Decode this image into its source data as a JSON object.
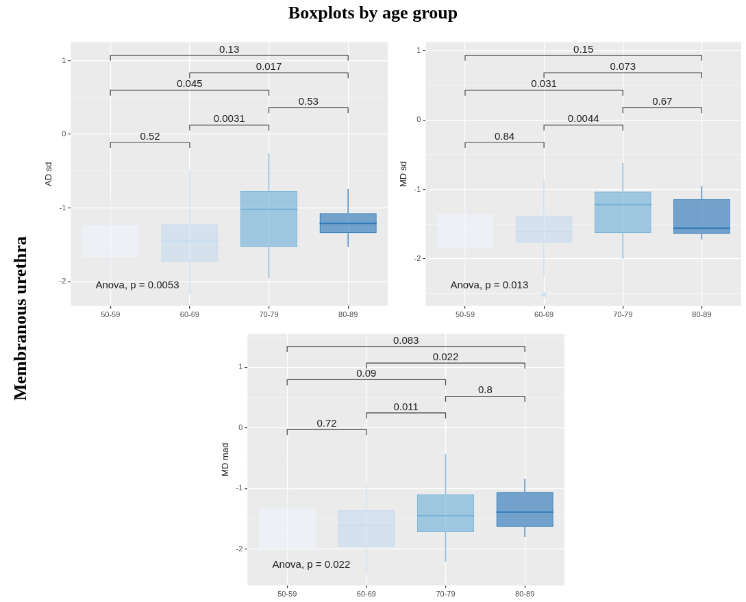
{
  "chart_data": [
    {
      "type": "box",
      "title": "Boxplots by age group",
      "subtitle": "Membranous urethra",
      "ylabel": "AD sd",
      "categories": [
        "50-59",
        "60-69",
        "70-79",
        "80-89"
      ],
      "boxes": [
        {
          "low": -2.0,
          "q1": -1.67,
          "median": -1.38,
          "q3": -1.23,
          "high": -0.86,
          "outliers": [
            -0.19
          ]
        },
        {
          "low": -2.17,
          "q1": -1.73,
          "median": -1.45,
          "q3": -1.22,
          "high": -0.48
        },
        {
          "low": -1.95,
          "q1": -1.53,
          "median": -1.02,
          "q3": -0.77,
          "high": -0.26
        },
        {
          "low": -1.53,
          "q1": -1.34,
          "median": -1.21,
          "q3": -1.07,
          "high": -0.74
        }
      ],
      "colors": [
        "#eef3fb",
        "#c6dbef",
        "#6baed6",
        "#2171b5"
      ],
      "ylim": [
        -2.33,
        1.25
      ],
      "yticks": [
        -2,
        {
          "value": -1.5,
          "label": null
        },
        -1,
        {
          "value": -0.5,
          "label": null
        },
        0,
        {
          "value": 0.5,
          "label": null
        },
        1
      ],
      "grid": true,
      "annotations": [
        "0.52",
        "0.0031",
        "0.53",
        "0.045",
        "0.017",
        "0.13",
        "Anova, p = 0.0053"
      ]
    },
    {
      "type": "box",
      "ylabel": "MD sd",
      "categories": [
        "50-59",
        "60-69",
        "70-79",
        "80-89"
      ],
      "boxes": [
        {
          "low": -2.1,
          "q1": -1.84,
          "median": -1.73,
          "q3": -1.36,
          "high": -1.17,
          "outliers": [
            -0.41
          ]
        },
        {
          "low": -2.26,
          "q1": -1.77,
          "median": -1.61,
          "q3": -1.38,
          "high": -0.85,
          "outliers": [
            -2.52
          ]
        },
        {
          "low": -2.0,
          "q1": -1.63,
          "median": -1.22,
          "q3": -1.03,
          "high": -0.62
        },
        {
          "low": -1.72,
          "q1": -1.64,
          "median": -1.56,
          "q3": -1.14,
          "high": -0.95
        }
      ],
      "colors": [
        "#eef3fb",
        "#c6dbef",
        "#6baed6",
        "#2171b5"
      ],
      "ylim": [
        -2.68,
        1.12
      ],
      "yticks": [
        {
          "value": -2.5,
          "label": null
        },
        -2,
        {
          "value": -1.5,
          "label": null
        },
        -1,
        {
          "value": -0.5,
          "label": null
        },
        0,
        {
          "value": 0.5,
          "label": null
        },
        1
      ],
      "grid": true,
      "annotations": [
        "0.84",
        "0.0044",
        "0.67",
        "0.031",
        "0.073",
        "0.15",
        "Anova, p = 0.013"
      ]
    },
    {
      "type": "box",
      "ylabel": "MD mad",
      "categories": [
        "50-59",
        "60-69",
        "70-79",
        "80-89"
      ],
      "boxes": [
        {
          "low": -2.4,
          "q1": -2.0,
          "median": -1.7,
          "q3": -1.33,
          "high": -1.09,
          "outliers": [
            -0.12
          ]
        },
        {
          "low": -2.42,
          "q1": -1.97,
          "median": -1.61,
          "q3": -1.36,
          "high": -0.9
        },
        {
          "low": -2.21,
          "q1": -1.72,
          "median": -1.45,
          "q3": -1.1,
          "high": -0.43
        },
        {
          "low": -1.8,
          "q1": -1.63,
          "median": -1.39,
          "q3": -1.06,
          "high": -0.84
        }
      ],
      "colors": [
        "#eef3fb",
        "#c6dbef",
        "#6baed6",
        "#2171b5"
      ],
      "ylim": [
        -2.6,
        1.55
      ],
      "yticks": [
        {
          "value": -2.5,
          "label": null
        },
        -2,
        {
          "value": -1.5,
          "label": null
        },
        -1,
        {
          "value": -0.5,
          "label": null
        },
        0,
        {
          "value": 0.5,
          "label": null
        },
        1,
        {
          "value": 1.5,
          "label": null
        }
      ],
      "grid": true,
      "annotations": [
        "0.72",
        "0.011",
        "0.8",
        "0.09",
        "0.022",
        "0.083",
        "Anova, p = 0.022"
      ]
    }
  ]
}
